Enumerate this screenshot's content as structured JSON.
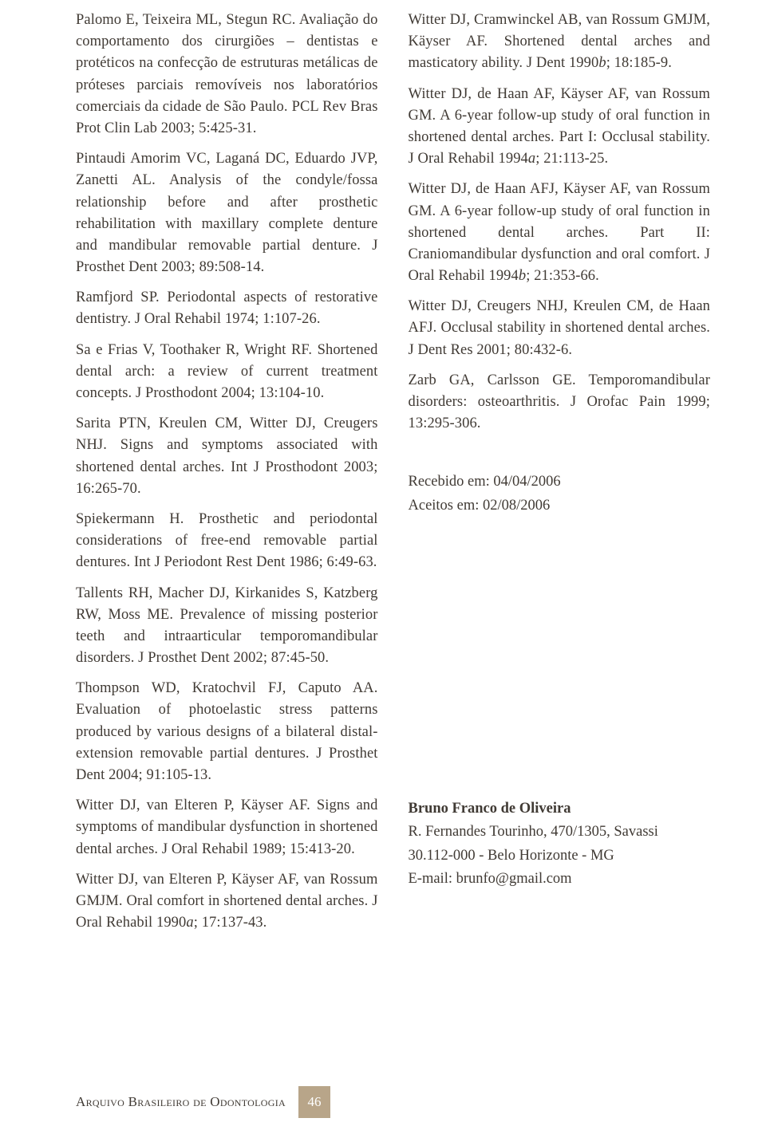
{
  "left_refs": [
    "Palomo E, Teixeira ML, Stegun RC. Avaliação do comportamento dos cirurgiões – dentistas e protéticos na confecção de estruturas metálicas de próteses parciais removíveis nos laboratórios comerciais da cidade de São Paulo. PCL Rev Bras Prot Clin Lab 2003; 5:425-31.",
    "Pintaudi Amorim VC, Laganá DC, Eduardo JVP, Zanetti AL. Analysis of the condyle/fossa relationship before and after prosthetic rehabilitation with maxillary complete denture and mandibular removable partial denture. J Prosthet Dent 2003; 89:508-14.",
    "Ramfjord SP. Periodontal aspects of restorative dentistry. J Oral Rehabil 1974; 1:107-26.",
    "Sa e Frias V, Toothaker R, Wright RF. Shortened dental arch: a review of current treatment concepts. J Prosthodont 2004; 13:104-10.",
    "Sarita PTN, Kreulen CM, Witter DJ, Creugers NHJ. Signs and symptoms associated with shortened dental arches. Int J Prosthodont 2003; 16:265-70.",
    "Spiekermann H. Prosthetic and periodontal considerations of free-end removable partial dentures. Int J Periodont Rest Dent 1986; 6:49-63.",
    "Tallents RH, Macher DJ, Kirkanides S, Katzberg RW, Moss ME. Prevalence of missing posterior teeth and intraarticular temporomandibular disorders. J Prosthet Dent 2002; 87:45-50.",
    "Thompson WD, Kratochvil FJ, Caputo AA. Evaluation of photoelastic stress patterns produced by various designs of a bilateral distal-extension removable partial dentures. J Prosthet Dent 2004; 91:105-13.",
    "Witter DJ, van Elteren P, Käyser AF. Signs and symptoms of mandibular dysfunction in shortened dental arches. J Oral Rehabil 1989; 15:413-20."
  ],
  "left_ref_last_pre": "Witter DJ, van Elteren P, Käyser AF, van Rossum GMJM. Oral comfort in shortened dental arches. J Oral Rehabil 1990",
  "left_ref_last_post": "; 17:137-43.",
  "right_ref_0_pre": "Witter DJ, Cramwinckel AB, van Rossum GMJM, Käyser AF. Shortened dental arches and masticatory ability. J Dent 1990",
  "right_ref_0_post": "; 18:185-9.",
  "right_ref_1_pre": "Witter DJ, de Haan AF, Käyser AF, van Rossum GM. A 6-year follow-up study of oral function in shortened dental arches. Part I: Occlusal stability. J Oral Rehabil 1994",
  "right_ref_1_post": "; 21:113-25.",
  "right_ref_2_pre": "Witter DJ, de Haan AFJ, Käyser AF, van Rossum GM. A 6-year follow-up study of oral function in shortened dental arches. Part II: Craniomandibular dysfunction and oral comfort. J Oral Rehabil 1994",
  "right_ref_2_post": "; 21:353-66.",
  "right_refs_tail": [
    "Witter DJ, Creugers NHJ, Kreulen CM, de Haan AFJ. Occlusal stability in shortened dental arches. J Dent Res 2001; 80:432-6.",
    "Zarb GA, Carlsson GE. Temporomandibular disorders: osteoarthritis. J Orofac Pain 1999; 13:295-306."
  ],
  "italic_a": "a",
  "italic_b": "b",
  "dates": {
    "received": "Recebido em: 04/04/2006",
    "accepted": "Aceitos em: 02/08/2006"
  },
  "author": {
    "name": "Bruno Franco de Oliveira",
    "line1": "R. Fernandes Tourinho, 470/1305, Savassi",
    "line2": "30.112-000 - Belo Horizonte - MG",
    "line3": "E-mail: brunfo@gmail.com"
  },
  "footer": {
    "journal": "Arquivo Brasileiro de Odontologia",
    "page": "46"
  }
}
